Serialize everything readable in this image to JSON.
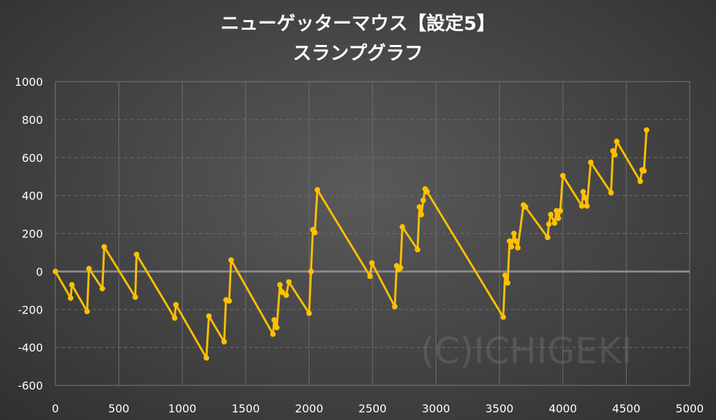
{
  "chart_data": {
    "type": "line",
    "title": "ニューゲッターマウス【設定5】",
    "subtitle": "スランプグラフ",
    "xlabel": "",
    "ylabel": "",
    "xlim": [
      0,
      5000
    ],
    "ylim": [
      -600,
      1000
    ],
    "x_ticks": [
      "0",
      "500",
      "1000",
      "1500",
      "2000",
      "2500",
      "3000",
      "3500",
      "4000",
      "4500",
      "5000"
    ],
    "y_ticks": [
      "1000",
      "800",
      "600",
      "400",
      "200",
      "0",
      "-200",
      "-400",
      "-600"
    ],
    "grid": true,
    "legend": "none",
    "watermark": "(C)ICHIGEKI",
    "colors": {
      "line": "#ffc000",
      "marker": "#ffc000",
      "zero_line": "#8a8a8a",
      "grid": "#6e6e6e"
    },
    "series": [
      {
        "x": [
          0,
          120,
          130,
          250,
          265,
          370,
          385,
          630,
          640,
          940,
          950,
          1190,
          1210,
          1330,
          1345,
          1370,
          1385,
          1715,
          1725,
          1745,
          1770,
          1790,
          1820,
          1840,
          2000,
          2015,
          2030,
          2045,
          2065,
          2480,
          2495,
          2675,
          2690,
          2705,
          2720,
          2735,
          2855,
          2870,
          2885,
          2900,
          2915,
          2930,
          3530,
          3545,
          3565,
          3580,
          3595,
          3615,
          3630,
          3645,
          3690,
          3705,
          3880,
          3890,
          3905,
          3935,
          3950,
          3965,
          3980,
          4000,
          4150,
          4160,
          4175,
          4190,
          4220,
          4380,
          4395,
          4410,
          4425,
          4610,
          4625,
          4640,
          4660
        ],
        "y": [
          0,
          -140,
          -70,
          -210,
          15,
          -90,
          130,
          -135,
          90,
          -245,
          -175,
          -455,
          -235,
          -370,
          -150,
          -155,
          60,
          -330,
          -255,
          -295,
          -70,
          -110,
          -125,
          -55,
          -220,
          0,
          220,
          205,
          430,
          -25,
          45,
          -185,
          30,
          10,
          20,
          235,
          115,
          340,
          300,
          375,
          435,
          420,
          -240,
          -20,
          -60,
          160,
          130,
          200,
          160,
          125,
          350,
          340,
          180,
          250,
          300,
          255,
          320,
          280,
          320,
          505,
          345,
          420,
          390,
          345,
          575,
          415,
          635,
          615,
          685,
          475,
          535,
          530,
          745
        ]
      }
    ]
  }
}
